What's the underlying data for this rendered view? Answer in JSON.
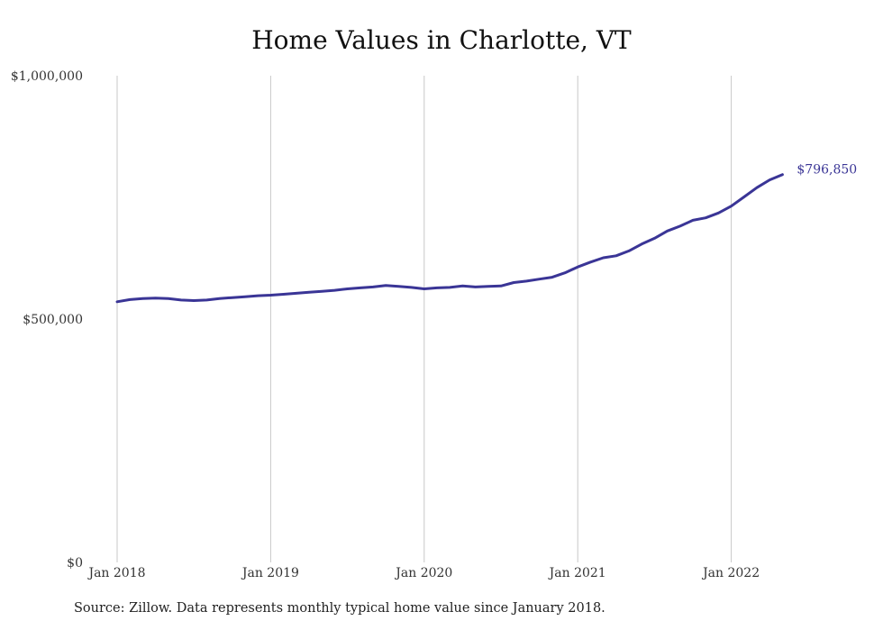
{
  "chart_data": {
    "type": "line",
    "title": "Home Values in Charlotte, VT",
    "xlabel": "",
    "ylabel": "",
    "ylim": [
      0,
      1000000
    ],
    "y_ticks": [
      {
        "value": 0,
        "label": "$0"
      },
      {
        "value": 500000,
        "label": "$500,000"
      },
      {
        "value": 1000000,
        "label": "$1,000,000"
      }
    ],
    "x_ticks": [
      {
        "value": "2018-01",
        "label": "Jan 2018"
      },
      {
        "value": "2019-01",
        "label": "Jan 2019"
      },
      {
        "value": "2020-01",
        "label": "Jan 2020"
      },
      {
        "value": "2021-01",
        "label": "Jan 2021"
      },
      {
        "value": "2022-01",
        "label": "Jan 2022"
      }
    ],
    "x_range": [
      "2018-01",
      "2022-05"
    ],
    "grid": {
      "vertical": true,
      "horizontal": false
    },
    "line_color": "#3a3596",
    "end_label": "$796,850",
    "series": [
      {
        "x": [
          "2018-01",
          "2018-02",
          "2018-03",
          "2018-04",
          "2018-05",
          "2018-06",
          "2018-07",
          "2018-08",
          "2018-09",
          "2018-10",
          "2018-11",
          "2018-12",
          "2019-01",
          "2019-02",
          "2019-03",
          "2019-04",
          "2019-05",
          "2019-06",
          "2019-07",
          "2019-08",
          "2019-09",
          "2019-10",
          "2019-11",
          "2019-12",
          "2020-01",
          "2020-02",
          "2020-03",
          "2020-04",
          "2020-05",
          "2020-06",
          "2020-07",
          "2020-08",
          "2020-09",
          "2020-10",
          "2020-11",
          "2020-12",
          "2021-01",
          "2021-02",
          "2021-03",
          "2021-04",
          "2021-05",
          "2021-06",
          "2021-07",
          "2021-08",
          "2021-09",
          "2021-10",
          "2021-11",
          "2021-12",
          "2022-01",
          "2022-02",
          "2022-03",
          "2022-04",
          "2022-05"
        ],
        "values": [
          535500,
          540000,
          542000,
          543000,
          542000,
          539000,
          538000,
          539000,
          542000,
          544000,
          546000,
          548000,
          549000,
          551000,
          553000,
          555000,
          557000,
          559000,
          562000,
          564000,
          566000,
          569000,
          567000,
          565000,
          562000,
          564000,
          565000,
          568000,
          566000,
          567000,
          568000,
          575000,
          578000,
          582000,
          586000,
          595000,
          607000,
          617000,
          626000,
          630000,
          640000,
          654000,
          666000,
          681000,
          691000,
          703000,
          708000,
          718000,
          732000,
          751000,
          770000,
          786000,
          796850
        ]
      }
    ]
  },
  "source": "Source: Zillow. Data represents monthly typical home value since January 2018."
}
